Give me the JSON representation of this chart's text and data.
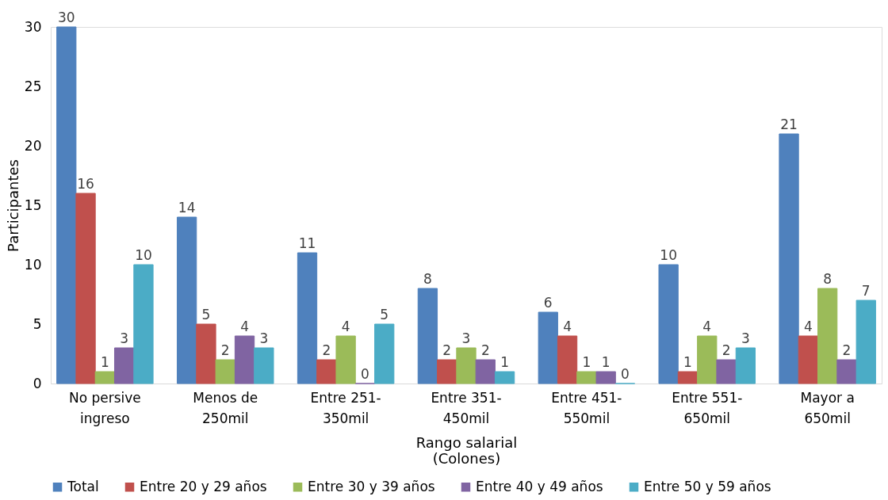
{
  "chart_data": {
    "type": "bar",
    "categories": [
      "No persive\ningreso",
      "Menos de\n250mil",
      "Entre 251-\n350mil",
      "Entre 351-\n450mil",
      "Entre 451-\n550mil",
      "Entre 551-\n650mil",
      "Mayor a\n650mil"
    ],
    "xlabel": "Rango salarial\n(Colones)",
    "ylabel": "Participantes",
    "ylim": [
      0,
      30
    ],
    "yticks": [
      0,
      5,
      10,
      15,
      20,
      25,
      30
    ],
    "series": [
      {
        "name": "Total",
        "color": "#4f81bd",
        "values": [
          30,
          14,
          11,
          8,
          6,
          10,
          21
        ]
      },
      {
        "name": "Entre 20 y 29 años",
        "color": "#c0504d",
        "values": [
          16,
          5,
          2,
          2,
          4,
          1,
          4
        ]
      },
      {
        "name": "Entre 30 y 39 años",
        "color": "#9bbb59",
        "values": [
          1,
          2,
          4,
          3,
          1,
          4,
          8
        ]
      },
      {
        "name": "Entre 40 y 49 años",
        "color": "#8064a2",
        "values": [
          3,
          4,
          0,
          2,
          1,
          2,
          2
        ]
      },
      {
        "name": "Entre 50 y 59 años",
        "color": "#4bacc6",
        "values": [
          10,
          3,
          5,
          1,
          0,
          3,
          7
        ]
      }
    ],
    "data_labels": true,
    "grid": false,
    "legend": "bottom"
  }
}
